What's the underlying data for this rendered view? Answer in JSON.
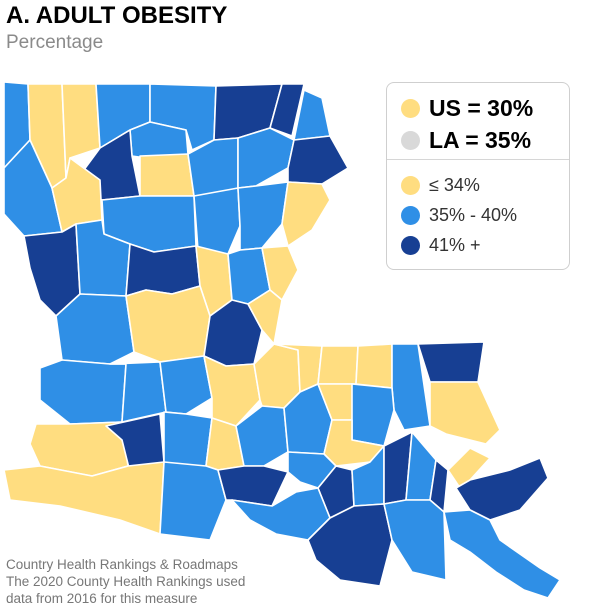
{
  "title": "A. ADULT OBESITY",
  "subtitle": "Percentage",
  "colors": {
    "low": "#ffdd80",
    "mid": "#2f8fe6",
    "high": "#173f93",
    "la": "#d9d9d9"
  },
  "legend": {
    "us": {
      "label": "US = 30%",
      "color": "#ffdd80"
    },
    "la": {
      "label": "LA = 35%",
      "color": "#d9d9d9"
    },
    "bins": [
      {
        "label": "≤ 34%",
        "color": "#ffdd80"
      },
      {
        "label": "35% - 40%",
        "color": "#2f8fe6"
      },
      {
        "label": "41% +",
        "color": "#173f93"
      }
    ]
  },
  "source": {
    "line1": "Country Health Rankings & Roadmaps",
    "line2": "The 2020 County Health Rankings used",
    "line3": "data from 2016 for this measure"
  },
  "map_data": {
    "region": "Louisiana parishes",
    "categories": [
      "low",
      "mid",
      "high"
    ]
  }
}
